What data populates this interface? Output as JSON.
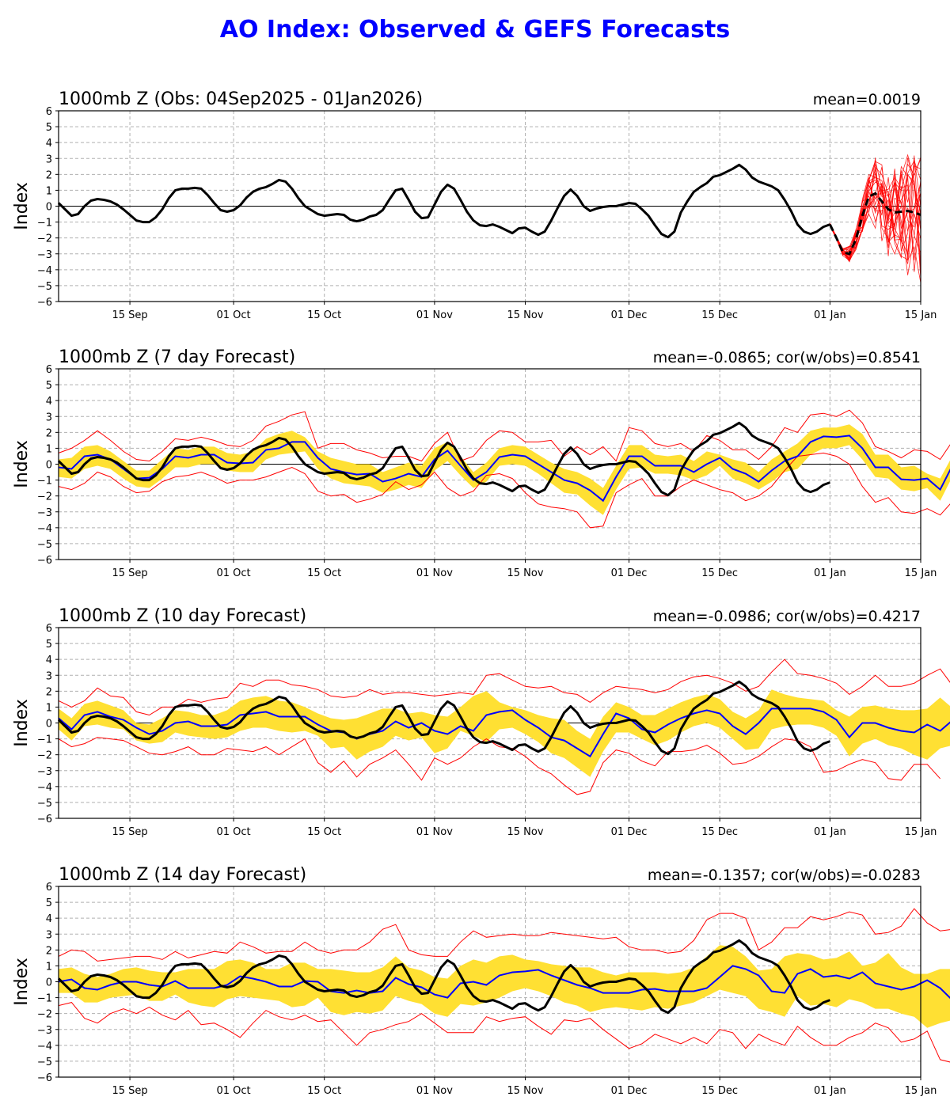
{
  "title": "AO Index: Observed & GEFS Forecasts",
  "colors": {
    "title": "#0000ff",
    "obs": "#000000",
    "ens_mean": "#0000ff",
    "spread": "#ffe033",
    "extremes": "#ff0000",
    "members": "#ff0000",
    "grid": "#b0b0b0"
  },
  "chart_data": [
    {
      "type": "line",
      "title": "1000mb Z (Obs: 04Sep2025 - 01Jan2026)",
      "stat": "mean=0.0019",
      "ylabel": "Index",
      "xlabel": "",
      "ylim": [
        -6,
        6
      ],
      "yticks": [
        "6",
        "5",
        "4",
        "3",
        "2",
        "1",
        "0",
        "−1",
        "−2",
        "−3",
        "−4",
        "−5",
        "−6"
      ],
      "xrange_days": [
        0,
        133
      ],
      "start_date": "04 Sep 2025",
      "xticks": [
        {
          "day": 11,
          "label": "15 Sep"
        },
        {
          "day": 27,
          "label": "01 Oct"
        },
        {
          "day": 41,
          "label": "15 Oct"
        },
        {
          "day": 58,
          "label": "01 Nov"
        },
        {
          "day": 72,
          "label": "15 Nov"
        },
        {
          "day": 88,
          "label": "01 Dec"
        },
        {
          "day": 102,
          "label": "15 Dec"
        },
        {
          "day": 119,
          "label": "01 Jan"
        },
        {
          "day": 133,
          "label": "15 Jan"
        }
      ],
      "grid": true,
      "observed": [
        0.2,
        -0.2,
        -0.6,
        -0.5,
        0.0,
        0.35,
        0.45,
        0.4,
        0.3,
        0.1,
        -0.2,
        -0.55,
        -0.9,
        -1.0,
        -1.0,
        -0.7,
        -0.2,
        0.5,
        1.0,
        1.1,
        1.1,
        1.15,
        1.1,
        0.7,
        0.2,
        -0.25,
        -0.35,
        -0.25,
        0.05,
        0.55,
        0.9,
        1.1,
        1.2,
        1.4,
        1.65,
        1.55,
        1.1,
        0.5,
        0.0,
        -0.25,
        -0.5,
        -0.6,
        -0.55,
        -0.5,
        -0.55,
        -0.85,
        -0.95,
        -0.85,
        -0.65,
        -0.55,
        -0.25,
        0.4,
        1.0,
        1.1,
        0.4,
        -0.35,
        -0.75,
        -0.7,
        0.1,
        0.9,
        1.35,
        1.1,
        0.4,
        -0.35,
        -0.9,
        -1.2,
        -1.25,
        -1.15,
        -1.3,
        -1.5,
        -1.7,
        -1.4,
        -1.35,
        -1.6,
        -1.8,
        -1.6,
        -0.9,
        -0.1,
        0.65,
        1.05,
        0.65,
        0.0,
        -0.3,
        -0.15,
        -0.05,
        0.0,
        0.0,
        0.1,
        0.2,
        0.15,
        -0.2,
        -0.6,
        -1.2,
        -1.75,
        -1.95,
        -1.6,
        -0.4,
        0.3,
        0.9,
        1.2,
        1.45,
        1.85,
        1.95,
        2.15,
        2.35,
        2.6,
        2.3,
        1.8,
        1.55,
        1.4,
        1.25,
        1.0,
        0.4,
        -0.3,
        -1.15,
        -1.6,
        -1.75,
        -1.6,
        -1.3,
        -1.15
      ],
      "gefs_mean": {
        "start_day": 119,
        "values": [
          -1.15,
          -2.0,
          -2.9,
          -3.0,
          -2.1,
          -0.6,
          0.6,
          0.8,
          0.3,
          -0.2,
          -0.4,
          -0.35,
          -0.3,
          -0.4,
          -0.55
        ]
      },
      "members": {
        "start_day": 119,
        "count": 21
      }
    },
    {
      "type": "line",
      "title": "1000mb Z (7 day Forecast)",
      "stat": "mean=-0.0865; cor(w/obs)=0.8541",
      "ylabel": "Index",
      "ylim": [
        -6,
        6
      ],
      "grid": true,
      "forecast_step_days": 2,
      "ens_mean": [
        -0.2,
        -0.3,
        0.5,
        0.6,
        0.3,
        -0.3,
        -0.9,
        -0.85,
        -0.3,
        0.5,
        0.4,
        0.6,
        0.6,
        0.1,
        0.05,
        0.1,
        0.9,
        1.0,
        1.4,
        1.4,
        0.4,
        -0.3,
        -0.5,
        -0.65,
        -0.6,
        -1.1,
        -0.9,
        -0.6,
        -0.8,
        0.3,
        0.85,
        -0.1,
        -1.0,
        -0.5,
        0.45,
        0.6,
        0.5,
        0.0,
        -0.5,
        -1.0,
        -1.2,
        -1.65,
        -2.3,
        -0.8,
        0.5,
        0.5,
        -0.1,
        -0.1,
        -0.1,
        -0.5,
        0.0,
        0.4,
        -0.3,
        -0.6,
        -1.1,
        -0.4,
        0.2,
        0.5,
        1.4,
        1.75,
        1.7,
        1.8,
        1.0,
        -0.2,
        -0.2,
        -0.95,
        -1.0,
        -0.9,
        -1.6,
        0.0,
        0.4
      ],
      "spread_upper": [
        0.3,
        0.4,
        1.1,
        1.2,
        0.8,
        0.2,
        -0.4,
        -0.4,
        0.3,
        1.0,
        0.9,
        1.1,
        1.1,
        0.7,
        0.6,
        0.8,
        1.6,
        1.9,
        2.1,
        1.7,
        0.8,
        0.4,
        0.2,
        0.0,
        0.0,
        -0.5,
        -0.2,
        0.1,
        -0.1,
        1.0,
        1.4,
        0.5,
        -0.5,
        0.1,
        1.0,
        1.2,
        1.1,
        0.6,
        0.1,
        -0.3,
        -0.5,
        -0.9,
        -1.5,
        -0.1,
        1.2,
        1.2,
        0.6,
        0.5,
        0.6,
        0.2,
        0.8,
        0.6,
        0.3,
        0.1,
        -0.5,
        0.3,
        0.8,
        1.3,
        2.1,
        2.3,
        2.3,
        2.5,
        1.9,
        0.6,
        0.6,
        -0.2,
        -0.1,
        -0.6,
        -0.9,
        0.6,
        1.1
      ],
      "spread_lower": [
        -0.8,
        -0.9,
        -0.3,
        -0.1,
        -0.3,
        -0.9,
        -1.4,
        -1.5,
        -0.9,
        -0.2,
        -0.2,
        0.0,
        0.0,
        -0.4,
        -0.5,
        -0.5,
        0.3,
        0.6,
        0.7,
        0.8,
        -0.3,
        -0.9,
        -1.2,
        -1.3,
        -1.4,
        -1.8,
        -1.6,
        -1.3,
        -1.5,
        -0.4,
        0.2,
        -0.7,
        -1.5,
        -1.1,
        -0.1,
        0.0,
        -0.1,
        -0.6,
        -1.2,
        -1.8,
        -1.9,
        -2.6,
        -3.2,
        -1.6,
        -0.3,
        -0.2,
        -0.6,
        -0.6,
        -0.7,
        -1.0,
        -0.7,
        -0.1,
        -0.9,
        -1.2,
        -1.6,
        -1.1,
        -0.5,
        -0.3,
        0.6,
        1.0,
        1.0,
        1.2,
        0.3,
        -0.8,
        -0.9,
        -1.6,
        -1.7,
        -1.5,
        -2.3,
        -0.7,
        -0.2
      ],
      "extreme_upper": [
        0.7,
        1.0,
        1.5,
        2.1,
        1.5,
        0.8,
        0.3,
        0.2,
        0.8,
        1.6,
        1.5,
        1.7,
        1.5,
        1.2,
        1.1,
        1.5,
        2.4,
        2.7,
        3.1,
        3.3,
        1.0,
        1.3,
        1.3,
        0.9,
        0.7,
        0.4,
        0.5,
        0.5,
        0.2,
        1.3,
        2.0,
        0.2,
        0.5,
        1.5,
        2.1,
        2.0,
        1.4,
        1.4,
        1.5,
        0.5,
        1.1,
        0.6,
        1.1,
        0.2,
        2.3,
        2.1,
        1.3,
        1.1,
        1.3,
        0.8,
        1.8,
        1.5,
        0.9,
        0.9,
        0.3,
        1.1,
        2.3,
        2.0,
        3.1,
        3.2,
        3.0,
        3.4,
        2.6,
        1.1,
        0.8,
        0.4,
        0.9,
        0.8,
        0.3,
        1.5,
        1.8
      ],
      "extreme_lower": [
        -1.4,
        -1.6,
        -1.2,
        -0.5,
        -0.8,
        -1.4,
        -1.8,
        -1.7,
        -1.1,
        -0.8,
        -0.7,
        -0.5,
        -0.8,
        -1.2,
        -1.0,
        -1.0,
        -0.8,
        -0.5,
        -0.2,
        -0.6,
        -1.7,
        -2.0,
        -1.9,
        -2.4,
        -2.2,
        -1.9,
        -1.1,
        -1.6,
        -1.3,
        -0.5,
        -1.5,
        -2.0,
        -1.7,
        -0.7,
        -0.6,
        -0.9,
        -1.8,
        -2.5,
        -2.7,
        -2.8,
        -3.0,
        -4.0,
        -3.9,
        -1.8,
        -1.3,
        -0.9,
        -2.0,
        -2.0,
        -1.4,
        -1.0,
        -1.3,
        -1.6,
        -1.8,
        -2.3,
        -2.0,
        -1.4,
        -0.4,
        0.5,
        0.6,
        0.7,
        0.5,
        0.0,
        -1.4,
        -2.4,
        -2.1,
        -3.0,
        -3.1,
        -2.8,
        -3.2,
        -2.3,
        -1.4
      ]
    },
    {
      "type": "line",
      "title": "1000mb Z (10 day Forecast)",
      "stat": "mean=-0.0986; cor(w/obs)=0.4217",
      "ylabel": "Index",
      "ylim": [
        -6,
        6
      ],
      "grid": true,
      "forecast_step_days": 2,
      "ens_mean": [
        0.3,
        -0.4,
        0.5,
        0.7,
        0.4,
        0.2,
        -0.3,
        -0.7,
        -0.5,
        0.0,
        0.1,
        -0.2,
        -0.2,
        -0.1,
        0.5,
        0.6,
        0.7,
        0.4,
        0.4,
        0.4,
        -0.1,
        -0.5,
        -0.6,
        -1.0,
        -0.7,
        -0.5,
        0.1,
        -0.3,
        0.0,
        -0.5,
        -0.7,
        -0.2,
        -0.5,
        0.5,
        0.7,
        0.8,
        0.2,
        -0.3,
        -0.9,
        -1.1,
        -1.6,
        -2.1,
        -0.7,
        0.6,
        0.3,
        -0.4,
        -0.6,
        -0.1,
        0.3,
        0.6,
        0.8,
        0.6,
        -0.2,
        -0.7,
        0.0,
        0.9,
        0.9,
        0.9,
        0.9,
        0.7,
        0.2,
        -0.9,
        0.0,
        0.0,
        -0.3,
        -0.5,
        -0.6,
        -0.1,
        -0.5,
        0.2,
        -0.9
      ],
      "spread_upper": [
        0.9,
        0.3,
        1.2,
        1.4,
        1.1,
        0.8,
        0.0,
        -0.1,
        0.3,
        0.8,
        0.7,
        0.5,
        0.5,
        0.8,
        1.4,
        1.6,
        1.7,
        1.4,
        1.3,
        1.0,
        0.6,
        0.3,
        0.2,
        0.3,
        0.6,
        0.9,
        0.9,
        0.6,
        0.7,
        0.5,
        0.4,
        1.0,
        1.7,
        2.0,
        1.3,
        1.0,
        0.8,
        0.5,
        0.3,
        0.2,
        -0.5,
        -1.0,
        0.4,
        1.3,
        1.0,
        0.5,
        0.5,
        0.9,
        1.3,
        1.6,
        1.8,
        1.5,
        0.7,
        0.3,
        0.8,
        2.1,
        1.8,
        1.6,
        1.5,
        1.4,
        0.8,
        0.4,
        1.0,
        1.1,
        0.9,
        0.8,
        0.8,
        0.9,
        1.6,
        0.9,
        0.4
      ],
      "spread_lower": [
        -0.4,
        -1.1,
        -0.2,
        -0.1,
        -0.3,
        -0.4,
        -1.1,
        -1.3,
        -1.2,
        -0.6,
        -0.8,
        -0.9,
        -1.0,
        -0.9,
        -0.5,
        -0.3,
        -0.3,
        -0.5,
        -0.6,
        -0.5,
        -0.8,
        -1.6,
        -1.5,
        -2.3,
        -1.8,
        -1.5,
        -0.8,
        -1.1,
        -0.9,
        -1.9,
        -1.6,
        -0.5,
        -0.8,
        -1.2,
        -0.4,
        -0.3,
        -0.7,
        -1.2,
        -1.9,
        -2.2,
        -2.8,
        -3.4,
        -1.8,
        -0.6,
        -0.6,
        -1.0,
        -1.4,
        -1.1,
        -0.6,
        -0.2,
        0.0,
        -0.3,
        -1.0,
        -1.7,
        -1.6,
        -0.4,
        -0.2,
        -0.1,
        -0.1,
        -0.3,
        -0.8,
        -2.1,
        -1.3,
        -1.0,
        -1.4,
        -1.6,
        -2.0,
        -2.3,
        -1.6,
        -1.4,
        -2.0
      ],
      "extreme_upper": [
        1.4,
        1.0,
        1.4,
        2.2,
        1.7,
        1.6,
        0.7,
        0.5,
        1.0,
        1.0,
        1.5,
        1.3,
        1.5,
        1.6,
        2.5,
        2.3,
        2.7,
        2.7,
        2.4,
        2.3,
        2.1,
        1.7,
        1.6,
        1.7,
        2.1,
        1.8,
        1.9,
        1.9,
        1.8,
        1.7,
        1.8,
        1.9,
        1.8,
        3.0,
        3.1,
        2.7,
        2.3,
        2.2,
        2.3,
        1.9,
        1.8,
        1.3,
        1.9,
        2.3,
        2.2,
        2.1,
        1.9,
        2.1,
        2.6,
        2.9,
        3.0,
        2.8,
        2.5,
        2.0,
        2.3,
        3.2,
        4.0,
        3.1,
        3.0,
        2.8,
        2.5,
        1.8,
        2.3,
        3.0,
        2.3,
        2.3,
        2.5,
        3.0,
        3.4,
        2.3,
        1.6
      ],
      "extreme_lower": [
        -1.0,
        -1.5,
        -1.3,
        -0.9,
        -1.0,
        -1.1,
        -1.5,
        -1.9,
        -2.0,
        -1.8,
        -1.5,
        -2.0,
        -2.0,
        -1.6,
        -1.7,
        -1.8,
        -1.5,
        -2.0,
        -1.5,
        -1.0,
        -2.5,
        -3.1,
        -2.4,
        -3.4,
        -2.6,
        -2.2,
        -1.7,
        -2.6,
        -3.6,
        -2.2,
        -2.6,
        -2.2,
        -1.5,
        -1.0,
        -1.5,
        -1.6,
        -2.1,
        -2.8,
        -3.2,
        -3.9,
        -4.5,
        -4.3,
        -2.5,
        -1.7,
        -1.9,
        -2.4,
        -2.7,
        -1.8,
        -1.8,
        -1.7,
        -1.4,
        -1.9,
        -2.6,
        -2.5,
        -2.1,
        -1.5,
        -1.0,
        -1.1,
        -1.5,
        -3.1,
        -3.0,
        -2.6,
        -2.3,
        -2.5,
        -3.5,
        -3.6,
        -2.6,
        -2.6,
        -3.5
      ],
      "extreme_lower_note": ""
    },
    {
      "type": "line",
      "title": "1000mb Z (14 day Forecast)",
      "stat": "mean=-0.1357; cor(w/obs)=-0.0283",
      "ylabel": "Index",
      "ylim": [
        -6,
        6
      ],
      "grid": true,
      "forecast_step_days": 2,
      "ens_mean": [
        0.0,
        0.15,
        -0.4,
        -0.5,
        -0.2,
        0.0,
        0.0,
        -0.2,
        -0.3,
        0.05,
        -0.4,
        -0.4,
        -0.4,
        -0.2,
        0.35,
        0.2,
        0.0,
        -0.3,
        -0.3,
        0.05,
        0.0,
        -0.6,
        -0.7,
        -0.55,
        -0.7,
        -0.6,
        0.25,
        -0.15,
        -0.35,
        -0.8,
        -1.0,
        -0.1,
        0.0,
        -0.2,
        0.4,
        0.6,
        0.65,
        0.75,
        0.4,
        0.1,
        -0.2,
        -0.4,
        -0.7,
        -0.7,
        -0.7,
        -0.5,
        -0.45,
        -0.6,
        -0.6,
        -0.6,
        -0.4,
        0.3,
        1.0,
        0.8,
        0.4,
        -0.6,
        -0.7,
        0.5,
        0.8,
        0.3,
        0.4,
        0.2,
        0.6,
        -0.1,
        -0.3,
        -0.5,
        -0.3,
        0.1,
        -0.4,
        -1.2,
        -0.7,
        -0.9,
        -1.1
      ],
      "spread_upper": [
        0.8,
        0.9,
        0.5,
        0.3,
        0.5,
        0.8,
        0.9,
        0.7,
        0.6,
        0.6,
        0.8,
        0.8,
        0.8,
        1.3,
        1.4,
        1.2,
        0.8,
        0.8,
        1.2,
        1.2,
        0.8,
        0.8,
        0.7,
        0.6,
        0.6,
        0.9,
        1.6,
        0.9,
        0.7,
        0.3,
        0.2,
        1.0,
        1.4,
        1.2,
        1.6,
        1.7,
        1.4,
        1.3,
        1.1,
        1.0,
        0.9,
        0.9,
        0.6,
        0.4,
        0.6,
        0.6,
        0.6,
        0.5,
        0.6,
        0.9,
        1.6,
        2.3,
        2.2,
        1.6,
        0.7,
        0.8,
        1.6,
        1.8,
        1.7,
        1.4,
        1.5,
        1.9,
        1.0,
        1.2,
        1.8,
        0.9,
        0.5,
        0.5,
        0.8,
        0.8,
        0.7
      ],
      "spread_lower": [
        -0.7,
        -0.7,
        -1.3,
        -1.3,
        -1.0,
        -0.9,
        -0.8,
        -1.2,
        -1.2,
        -0.8,
        -1.3,
        -1.5,
        -1.6,
        -1.1,
        -0.9,
        -1.0,
        -1.1,
        -1.2,
        -1.6,
        -1.5,
        -1.0,
        -1.9,
        -2.1,
        -1.9,
        -2.0,
        -1.8,
        -0.9,
        -1.2,
        -1.4,
        -2.0,
        -2.2,
        -1.4,
        -1.5,
        -1.3,
        -1.0,
        -0.6,
        -0.4,
        -0.6,
        -0.9,
        -1.3,
        -1.5,
        -1.9,
        -1.7,
        -1.6,
        -1.7,
        -1.8,
        -1.6,
        -1.7,
        -1.5,
        -1.3,
        -0.9,
        -0.5,
        -0.7,
        -0.9,
        -1.7,
        -1.9,
        -2.2,
        -0.9,
        -1.5,
        -1.4,
        -1.6,
        -1.1,
        -1.3,
        -1.7,
        -1.7,
        -2.0,
        -2.2,
        -2.9,
        -2.6,
        -2.4,
        -2.6,
        -3.0
      ],
      "extreme_upper": [
        1.6,
        2.0,
        1.9,
        1.3,
        1.4,
        1.5,
        1.6,
        1.6,
        1.4,
        1.9,
        1.5,
        1.7,
        1.9,
        1.8,
        2.5,
        2.2,
        1.8,
        1.9,
        1.9,
        2.5,
        2.0,
        1.8,
        2.0,
        2.0,
        2.5,
        3.3,
        3.6,
        2.0,
        1.7,
        1.6,
        1.6,
        2.5,
        3.2,
        2.8,
        2.9,
        3.0,
        2.9,
        2.9,
        3.1,
        3.0,
        2.9,
        2.8,
        2.7,
        2.8,
        2.2,
        2.0,
        2.0,
        1.8,
        1.9,
        2.6,
        3.9,
        4.3,
        4.3,
        4.0,
        2.0,
        2.5,
        3.4,
        3.4,
        4.1,
        3.9,
        4.1,
        4.4,
        4.2,
        3.0,
        3.1,
        3.5,
        4.6,
        3.7,
        3.2,
        3.3,
        2.8,
        2.6,
        3.5
      ],
      "extreme_lower": [
        -1.5,
        -1.3,
        -2.3,
        -2.6,
        -2.0,
        -1.7,
        -2.0,
        -1.6,
        -2.1,
        -2.4,
        -1.8,
        -2.7,
        -2.6,
        -3.0,
        -3.5,
        -2.6,
        -1.8,
        -2.2,
        -2.4,
        -2.1,
        -2.5,
        -2.4,
        -3.2,
        -4.0,
        -3.2,
        -3.0,
        -2.7,
        -2.5,
        -2.0,
        -2.6,
        -3.2,
        -3.2,
        -3.2,
        -2.2,
        -2.5,
        -2.3,
        -2.2,
        -2.8,
        -3.3,
        -2.4,
        -2.5,
        -2.3,
        -3.0,
        -3.6,
        -4.2,
        -3.9,
        -3.3,
        -3.6,
        -3.9,
        -3.5,
        -3.9,
        -3.0,
        -3.2,
        -4.2,
        -3.3,
        -3.7,
        -4.0,
        -2.8,
        -3.5,
        -4.0,
        -4.0,
        -3.5,
        -3.2,
        -2.6,
        -2.9,
        -3.8,
        -3.6,
        -3.1,
        -4.9,
        -5.1,
        -5.0,
        -4.6,
        -5.0
      ]
    }
  ]
}
